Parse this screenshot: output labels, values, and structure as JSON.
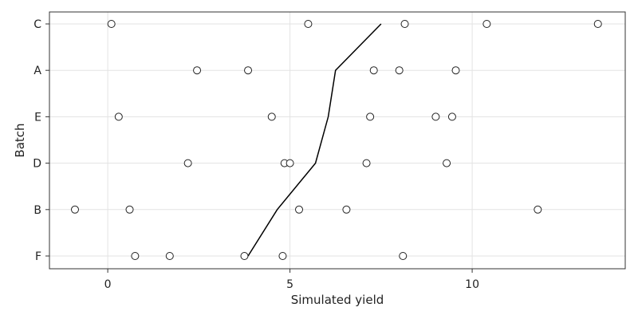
{
  "chart_data": {
    "type": "scatter",
    "xlabel": "Simulated yield",
    "ylabel": "Batch",
    "xlim": [
      -1.6,
      14.2
    ],
    "x_ticks": [
      0,
      5,
      10
    ],
    "categories": [
      "C",
      "A",
      "E",
      "D",
      "B",
      "F"
    ],
    "grid": true,
    "legend": "none",
    "series": [
      {
        "type": "scatter",
        "marker": "open-circle",
        "points": [
          {
            "category": "C",
            "x": 0.1
          },
          {
            "category": "C",
            "x": 5.5
          },
          {
            "category": "C",
            "x": 8.15
          },
          {
            "category": "C",
            "x": 10.4
          },
          {
            "category": "C",
            "x": 13.45
          },
          {
            "category": "A",
            "x": 2.45
          },
          {
            "category": "A",
            "x": 3.85
          },
          {
            "category": "A",
            "x": 7.3
          },
          {
            "category": "A",
            "x": 8.0
          },
          {
            "category": "A",
            "x": 9.55
          },
          {
            "category": "E",
            "x": 0.3
          },
          {
            "category": "E",
            "x": 4.5
          },
          {
            "category": "E",
            "x": 7.2
          },
          {
            "category": "E",
            "x": 9.0
          },
          {
            "category": "E",
            "x": 9.45
          },
          {
            "category": "D",
            "x": 2.2
          },
          {
            "category": "D",
            "x": 4.85
          },
          {
            "category": "D",
            "x": 5.0
          },
          {
            "category": "D",
            "x": 7.1
          },
          {
            "category": "D",
            "x": 9.3
          },
          {
            "category": "B",
            "x": -0.9
          },
          {
            "category": "B",
            "x": 0.6
          },
          {
            "category": "B",
            "x": 5.25
          },
          {
            "category": "B",
            "x": 6.55
          },
          {
            "category": "B",
            "x": 11.8
          },
          {
            "category": "F",
            "x": 0.75
          },
          {
            "category": "F",
            "x": 1.7
          },
          {
            "category": "F",
            "x": 3.75
          },
          {
            "category": "F",
            "x": 4.8
          },
          {
            "category": "F",
            "x": 8.1
          }
        ]
      },
      {
        "type": "line",
        "points": [
          {
            "category": "C",
            "x": 7.5
          },
          {
            "category": "A",
            "x": 6.25
          },
          {
            "category": "E",
            "x": 6.05
          },
          {
            "category": "D",
            "x": 5.7
          },
          {
            "category": "B",
            "x": 4.65
          },
          {
            "category": "F",
            "x": 3.85
          }
        ]
      }
    ],
    "colors": {
      "marker_stroke": "#222222",
      "line": "#000000",
      "grid": "#e3e3e3",
      "frame": "#333333"
    }
  }
}
